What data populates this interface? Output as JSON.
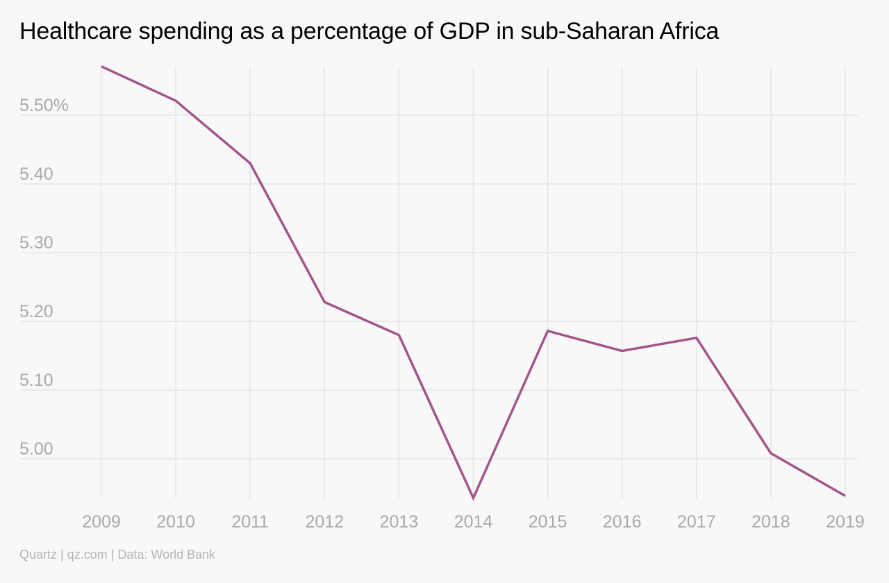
{
  "chart_data": {
    "type": "line",
    "title": "Healthcare spending as a percentage of GDP in sub-Saharan Africa",
    "xlabel": "",
    "ylabel": "",
    "x": [
      "2009",
      "2010",
      "2011",
      "2012",
      "2013",
      "2014",
      "2015",
      "2016",
      "2017",
      "2018",
      "2019"
    ],
    "series": [
      {
        "values": [
          5.571,
          5.521,
          5.43,
          5.228,
          5.18,
          4.943,
          5.186,
          5.157,
          5.176,
          5.008,
          4.946
        ]
      }
    ],
    "ylim": [
      4.93,
      5.57
    ],
    "yticks": [
      5.0,
      5.1,
      5.2,
      5.3,
      5.4,
      5.5
    ],
    "ytick_labels": [
      "5.00",
      "5.10",
      "5.20",
      "5.30",
      "5.40",
      "5.50%"
    ],
    "grid": true,
    "legend": "none",
    "colors": {
      "line": "#a3558a",
      "grid": "#e4e4e4",
      "tick_text": "#a9a9a9",
      "background": "#f8f8f8"
    }
  },
  "source": "Quartz | qz.com | Data: World Bank"
}
